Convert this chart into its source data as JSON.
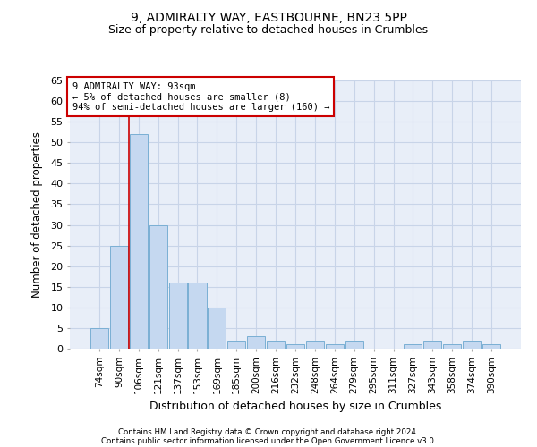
{
  "title1": "9, ADMIRALTY WAY, EASTBOURNE, BN23 5PP",
  "title2": "Size of property relative to detached houses in Crumbles",
  "xlabel": "Distribution of detached houses by size in Crumbles",
  "ylabel": "Number of detached properties",
  "categories": [
    "74sqm",
    "90sqm",
    "106sqm",
    "121sqm",
    "137sqm",
    "153sqm",
    "169sqm",
    "185sqm",
    "200sqm",
    "216sqm",
    "232sqm",
    "248sqm",
    "264sqm",
    "279sqm",
    "295sqm",
    "311sqm",
    "327sqm",
    "343sqm",
    "358sqm",
    "374sqm",
    "390sqm"
  ],
  "values": [
    5,
    25,
    52,
    30,
    16,
    16,
    10,
    2,
    3,
    2,
    1,
    2,
    1,
    2,
    0,
    0,
    1,
    2,
    1,
    2,
    1
  ],
  "bar_color": "#c5d8f0",
  "bar_edge_color": "#7aafd4",
  "annotation_line_color": "#cc0000",
  "annotation_box_text": "9 ADMIRALTY WAY: 93sqm\n← 5% of detached houses are smaller (8)\n94% of semi-detached houses are larger (160) →",
  "ylim": [
    0,
    65
  ],
  "yticks": [
    0,
    5,
    10,
    15,
    20,
    25,
    30,
    35,
    40,
    45,
    50,
    55,
    60,
    65
  ],
  "grid_color": "#c8d4e8",
  "background_color": "#e8eef8",
  "footer1": "Contains HM Land Registry data © Crown copyright and database right 2024.",
  "footer2": "Contains public sector information licensed under the Open Government Licence v3.0."
}
